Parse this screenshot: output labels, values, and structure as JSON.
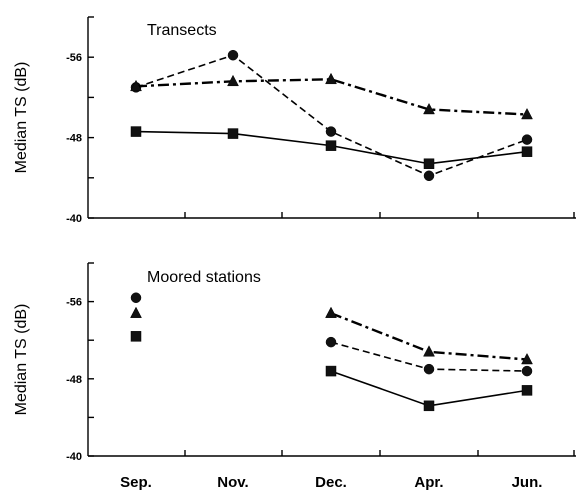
{
  "chart_data": [
    {
      "type": "line",
      "title": "Transects",
      "ylabel": "Median TS (dB)",
      "xlabel": "",
      "categories": [
        "Sep.",
        "Nov.",
        "Dec.",
        "Apr.",
        "Jun."
      ],
      "y_tick_labels": [
        "-56",
        "-48",
        "-40"
      ],
      "ylim": [
        -40,
        -60
      ],
      "y_inverted": true,
      "grid": false,
      "legend": "none",
      "series": [
        {
          "marker": "circle",
          "linestyle": "dashed",
          "values": [
            -53.0,
            -56.2,
            -48.6,
            -44.2,
            -47.8
          ]
        },
        {
          "marker": "triangle",
          "linestyle": "dashdot",
          "values": [
            -53.1,
            -53.6,
            -53.8,
            -50.8,
            -50.3
          ]
        },
        {
          "marker": "square",
          "linestyle": "solid",
          "values": [
            -48.6,
            -48.4,
            -47.2,
            -45.4,
            -46.6
          ]
        }
      ]
    },
    {
      "type": "line",
      "title": "Moored stations",
      "ylabel": "Median TS (dB)",
      "xlabel": "",
      "categories": [
        "Sep.",
        "Nov.",
        "Dec.",
        "Apr.",
        "Jun."
      ],
      "y_tick_labels": [
        "-56",
        "-48",
        "-40"
      ],
      "ylim": [
        -40,
        -60
      ],
      "y_inverted": true,
      "grid": false,
      "legend": "none",
      "series": [
        {
          "marker": "circle",
          "linestyle": "dashed",
          "values": [
            -56.4,
            null,
            -51.8,
            -49.0,
            -48.8
          ]
        },
        {
          "marker": "triangle",
          "linestyle": "dashdot",
          "values": [
            -54.8,
            null,
            -54.8,
            -50.8,
            -50.0
          ]
        },
        {
          "marker": "square",
          "linestyle": "solid",
          "values": [
            -52.4,
            null,
            -48.8,
            -45.2,
            -46.8
          ]
        }
      ]
    }
  ]
}
